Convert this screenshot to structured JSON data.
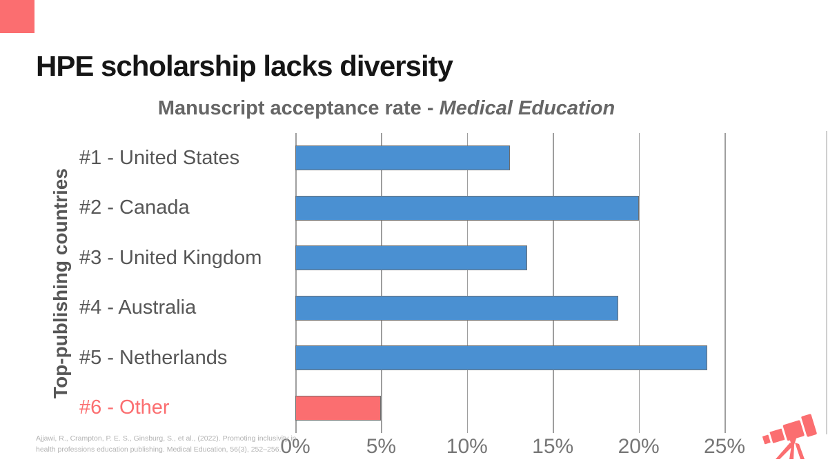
{
  "slide": {
    "title": "HPE scholarship lacks diversity"
  },
  "chart": {
    "title_regular": "Manuscript acceptance rate - ",
    "title_italic": "Medical Education",
    "y_axis_label": "Top-publishing countries"
  },
  "chart_data": {
    "type": "bar",
    "orientation": "horizontal",
    "title": "Manuscript acceptance rate - Medical Education",
    "ylabel": "Top-publishing countries",
    "categories": [
      "#1 - United States",
      "#2 - Canada",
      "#3 - United Kingdom",
      "#4 - Australia",
      "#5 - Netherlands",
      "#6 - Other"
    ],
    "values": [
      12.5,
      20.0,
      13.5,
      18.8,
      24.0,
      5.0
    ],
    "value_unit": "percent",
    "xlim": [
      0,
      25
    ],
    "x_tick_labels": [
      "0%",
      "5%",
      "10%",
      "15%",
      "20%",
      "25%"
    ],
    "grid": "vertical-major-gridlines",
    "legend": "none",
    "colors": {
      "default_bar": "#4A90D2",
      "highlight_bar": "#FB6E70",
      "highlight_index": 5,
      "gridline": "#9e9e9e",
      "bar_border": "#6e6e6e"
    }
  },
  "citation": {
    "line1": "Ajjawi, R., Crampton, P. E. S., Ginsburg, S., et al., (2022). Promoting inclusivity in",
    "line2": "health professions education publishing. Medical Education, 56(3), 252–256."
  },
  "decorations": {
    "corner_square_color": "#FB6E70",
    "telescope_icon_color": "#FB6E70",
    "telescope_icon": "telescope-icon"
  }
}
